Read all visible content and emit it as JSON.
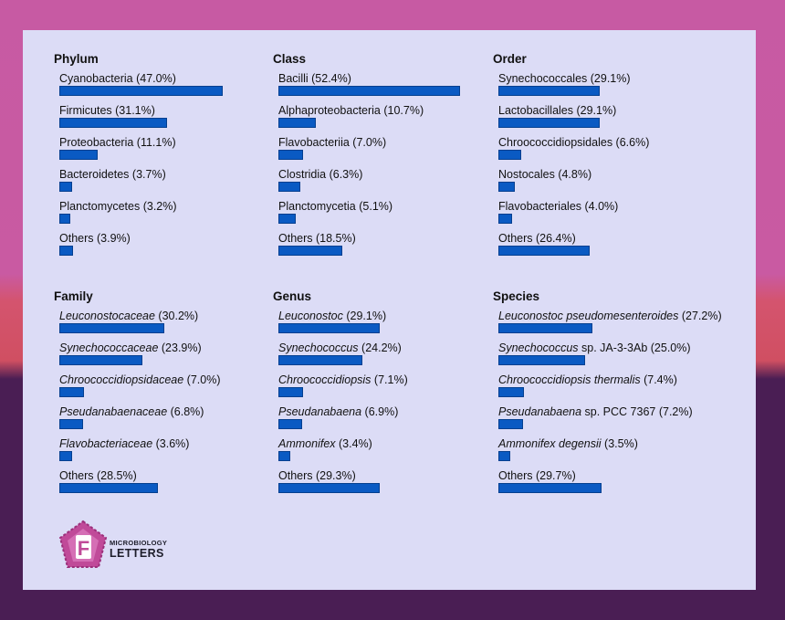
{
  "chart_data": [
    {
      "type": "bar",
      "title": "Phylum",
      "categories": [
        {
          "name": "Cyanobacteria",
          "pct": "47.0%",
          "value": 47.0,
          "italic": false
        },
        {
          "name": "Firmicutes",
          "pct": "31.1%",
          "value": 31.1,
          "italic": false
        },
        {
          "name": "Proteobacteria",
          "pct": "11.1%",
          "value": 11.1,
          "italic": false
        },
        {
          "name": "Bacteroidetes",
          "pct": "3.7%",
          "value": 3.7,
          "italic": false
        },
        {
          "name": "Planctomycetes",
          "pct": "3.2%",
          "value": 3.2,
          "italic": false
        },
        {
          "name": "Others",
          "pct": "3.9%",
          "value": 3.9,
          "italic": false
        }
      ]
    },
    {
      "type": "bar",
      "title": "Class",
      "categories": [
        {
          "name": "Bacilli",
          "pct": "52.4%",
          "value": 52.4,
          "italic": false
        },
        {
          "name": "Alphaproteobacteria",
          "pct": "10.7%",
          "value": 10.7,
          "italic": false
        },
        {
          "name": "Flavobacteriia",
          "pct": "7.0%",
          "value": 7.0,
          "italic": false
        },
        {
          "name": "Clostridia",
          "pct": "6.3%",
          "value": 6.3,
          "italic": false
        },
        {
          "name": "Planctomycetia",
          "pct": "5.1%",
          "value": 5.1,
          "italic": false
        },
        {
          "name": "Others",
          "pct": "18.5%",
          "value": 18.5,
          "italic": false
        }
      ]
    },
    {
      "type": "bar",
      "title": "Order",
      "categories": [
        {
          "name": "Synechococcales",
          "pct": "29.1%",
          "value": 29.1,
          "italic": false
        },
        {
          "name": "Lactobacillales",
          "pct": "29.1%",
          "value": 29.1,
          "italic": false
        },
        {
          "name": "Chroococcidiopsidales",
          "pct": "6.6%",
          "value": 6.6,
          "italic": false
        },
        {
          "name": "Nostocales",
          "pct": "4.8%",
          "value": 4.8,
          "italic": false
        },
        {
          "name": "Flavobacteriales",
          "pct": "4.0%",
          "value": 4.0,
          "italic": false
        },
        {
          "name": "Others",
          "pct": "26.4%",
          "value": 26.4,
          "italic": false
        }
      ]
    },
    {
      "type": "bar",
      "title": "Family",
      "categories": [
        {
          "name": "Leuconostocaceae",
          "pct": "30.2%",
          "value": 30.2,
          "italic": true
        },
        {
          "name": "Synechococcaceae",
          "pct": "23.9%",
          "value": 23.9,
          "italic": true
        },
        {
          "name": "Chroococcidiopsidaceae",
          "pct": "7.0%",
          "value": 7.0,
          "italic": true
        },
        {
          "name": "Pseudanabaenaceae",
          "pct": "6.8%",
          "value": 6.8,
          "italic": true
        },
        {
          "name": "Flavobacteriaceae",
          "pct": "3.6%",
          "value": 3.6,
          "italic": true
        },
        {
          "name": "Others",
          "pct": "28.5%",
          "value": 28.5,
          "italic": false
        }
      ]
    },
    {
      "type": "bar",
      "title": "Genus",
      "categories": [
        {
          "name": "Leuconostoc",
          "pct": "29.1%",
          "value": 29.1,
          "italic": true
        },
        {
          "name": "Synechococcus",
          "pct": "24.2%",
          "value": 24.2,
          "italic": true
        },
        {
          "name": "Chroococcidiopsis",
          "pct": "7.1%",
          "value": 7.1,
          "italic": true
        },
        {
          "name": "Pseudanabaena",
          "pct": "6.9%",
          "value": 6.9,
          "italic": true
        },
        {
          "name": "Ammonifex",
          "pct": "3.4%",
          "value": 3.4,
          "italic": true
        },
        {
          "name": "Others",
          "pct": "29.3%",
          "value": 29.3,
          "italic": false
        }
      ]
    },
    {
      "type": "bar",
      "title": "Species",
      "categories": [
        {
          "name": "Leuconostoc pseudomesenteroides",
          "pct": "27.2%",
          "value": 27.2,
          "italic": true
        },
        {
          "name": "Synechococcus",
          "suffix": " sp. JA-3-3Ab",
          "pct": "25.0%",
          "value": 25.0,
          "italic": true
        },
        {
          "name": "Chroococcidiopsis thermalis",
          "pct": "7.4%",
          "value": 7.4,
          "italic": true
        },
        {
          "name": "Pseudanabaena",
          "suffix": " sp. PCC 7367",
          "pct": "7.2%",
          "value": 7.2,
          "italic": true
        },
        {
          "name": "Ammonifex degensii",
          "pct": "3.5%",
          "value": 3.5,
          "italic": true
        },
        {
          "name": "Others",
          "pct": "29.7%",
          "value": 29.7,
          "italic": false
        }
      ]
    }
  ],
  "logo": {
    "letter": "F",
    "line1": "MICROBIOLOGY",
    "line2": "LETTERS"
  },
  "colors": {
    "bar": "#0a5ac3",
    "panel": "#dcdcf6"
  }
}
